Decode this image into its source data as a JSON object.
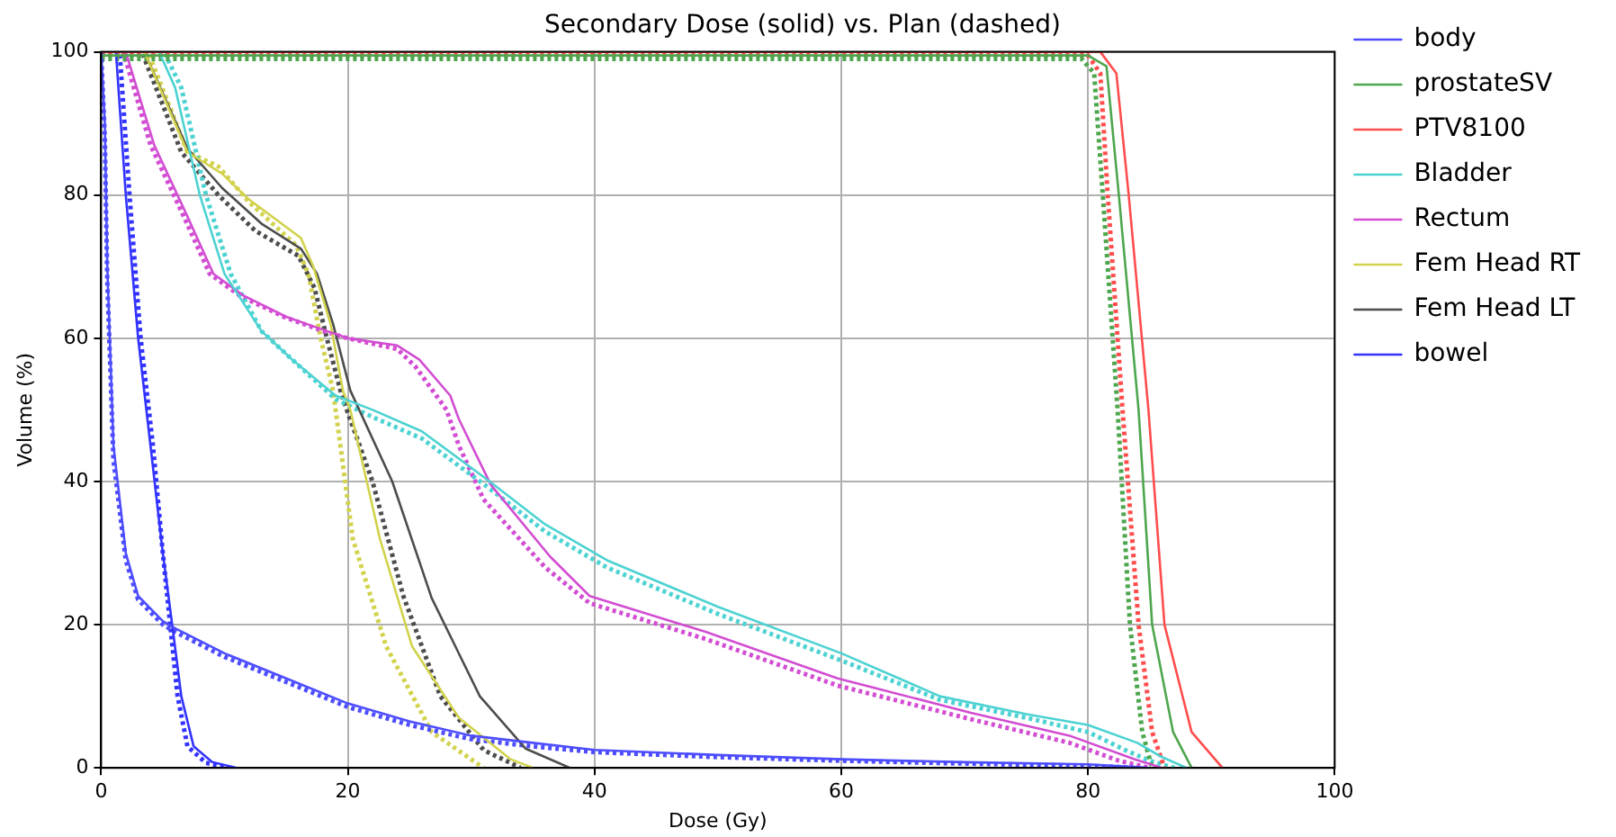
{
  "chart_data": {
    "type": "line",
    "title": "Secondary Dose (solid) vs. Plan (dashed)",
    "xlabel": "Dose (Gy)",
    "ylabel": "Volume (%)",
    "xlim": [
      0,
      100
    ],
    "xticks": [
      0,
      20,
      40,
      60,
      80,
      100
    ],
    "ylim": [
      0,
      100
    ],
    "yticks": [
      0,
      20,
      40,
      60,
      80,
      100
    ],
    "grid": true,
    "legend": "right",
    "series": [
      {
        "name": "body",
        "color": "#4d4dff",
        "line_style": "solid",
        "x": [
          0,
          0.3,
          0.5,
          1,
          2,
          3,
          5,
          6,
          10,
          15,
          20,
          25,
          30,
          35,
          40,
          50,
          60,
          70,
          80,
          85
        ],
        "values": [
          100,
          90,
          70,
          45,
          30,
          24,
          20.5,
          19.5,
          16,
          12.5,
          9,
          6.5,
          4.5,
          3.5,
          2.5,
          1.8,
          1.2,
          0.8,
          0.5,
          0
        ]
      },
      {
        "name": "prostateSV",
        "color": "#4da64d",
        "line_style": "solid",
        "x": [
          0,
          80,
          81.5,
          82.5,
          84.1,
          85.2,
          86.9,
          88.4
        ],
        "values": [
          99.5,
          99.5,
          98,
          80,
          50,
          20,
          5,
          0
        ]
      },
      {
        "name": "PTV8100",
        "color": "#ff4d4d",
        "line_style": "solid",
        "x": [
          0,
          81,
          82.3,
          83.3,
          84.9,
          86.2,
          88.4,
          90.9
        ],
        "values": [
          100,
          100,
          97,
          80,
          50,
          20,
          5,
          0
        ]
      },
      {
        "name": "Bladder",
        "color": "#4dd2d2",
        "line_style": "solid",
        "x": [
          0,
          4.7,
          6,
          8,
          10,
          13,
          15.5,
          19,
          22,
          26,
          31.5,
          36,
          41,
          50,
          60,
          68,
          75,
          80,
          84,
          86,
          88
        ],
        "values": [
          100,
          100,
          95,
          80,
          69,
          61,
          57,
          52,
          50,
          47,
          40,
          34,
          29,
          22.5,
          16,
          10,
          7.5,
          6,
          3.5,
          1.5,
          0
        ]
      },
      {
        "name": "Rectum",
        "color": "#d24dd2",
        "line_style": "solid",
        "x": [
          0,
          2,
          4.3,
          7,
          9.1,
          11.5,
          15,
          18.3,
          20,
          24,
          25.8,
          28.3,
          29,
          31.6,
          36.4,
          39.6,
          49,
          59.7,
          70.5,
          78.5,
          83.8,
          86
        ],
        "values": [
          100,
          100,
          87,
          77,
          69,
          66,
          63,
          61,
          60,
          59,
          57,
          52,
          48.7,
          39.5,
          29.5,
          24,
          19,
          12.5,
          7.7,
          4.5,
          1.2,
          0
        ]
      },
      {
        "name": "Fem Head RT",
        "color": "#d2d24d",
        "line_style": "solid",
        "x": [
          0,
          3.5,
          7,
          9.8,
          11.9,
          16.2,
          17.2,
          18.6,
          19.6,
          20.2,
          22.6,
          25.2,
          29,
          33.2,
          35
        ],
        "values": [
          100,
          100,
          86,
          83,
          79.5,
          74,
          70,
          62,
          52.7,
          50,
          32,
          17,
          7,
          1.2,
          0
        ]
      },
      {
        "name": "Fem Head LT",
        "color": "#4d4d4d",
        "line_style": "solid",
        "x": [
          0,
          3.5,
          7,
          9.8,
          13,
          16.2,
          17.5,
          18.8,
          20.2,
          23.6,
          26.8,
          30.7,
          34.4,
          38
        ],
        "values": [
          100,
          100,
          86.5,
          81,
          76,
          72.5,
          69,
          62,
          52.7,
          40,
          23.7,
          10,
          2.7,
          0
        ]
      },
      {
        "name": "bowel",
        "color": "#3333ff",
        "line_style": "solid",
        "x": [
          0,
          1.2,
          2,
          3,
          4,
          5,
          5.8,
          6.5,
          7.5,
          9,
          11
        ],
        "values": [
          100,
          100,
          80,
          60,
          45,
          30,
          19.5,
          10,
          3,
          0.8,
          0
        ]
      },
      {
        "color": "#4d4dff",
        "line_style": "dotted",
        "x": [
          0,
          0.3,
          0.5,
          1,
          2,
          3,
          5,
          6,
          10,
          15,
          20,
          25,
          30,
          35,
          40,
          50,
          60,
          70,
          80,
          84
        ],
        "values": [
          100,
          88,
          68,
          43,
          29,
          23.5,
          20,
          19,
          15.5,
          12,
          8.5,
          6,
          4,
          3,
          2.2,
          1.5,
          1,
          0.6,
          0.3,
          0
        ]
      },
      {
        "color": "#4da64d",
        "line_style": "dotted",
        "x": [
          0,
          79.5,
          80.5,
          81.2,
          82.4,
          83.4,
          84.4,
          85.2
        ],
        "values": [
          99,
          99,
          97,
          80,
          50,
          20,
          5,
          0
        ]
      },
      {
        "color": "#ff4d4d",
        "line_style": "dotted",
        "x": [
          0,
          80,
          81,
          81.6,
          82.8,
          84.1,
          85.2,
          86.2
        ],
        "values": [
          99.5,
          99.5,
          97,
          80,
          50,
          20,
          5,
          0
        ]
      },
      {
        "color": "#4dd2d2",
        "line_style": "dotted",
        "x": [
          0,
          5.1,
          6.5,
          8.5,
          10.5,
          13,
          15.5,
          19,
          22,
          26,
          31.5,
          36,
          41,
          50,
          60,
          68,
          75,
          80,
          83,
          85,
          87
        ],
        "values": [
          100,
          100,
          95,
          80,
          69,
          61,
          57,
          51.5,
          49,
          46,
          39,
          33,
          28,
          21.5,
          15,
          9.5,
          7,
          5,
          2.5,
          1,
          0
        ]
      },
      {
        "color": "#d24dd2",
        "line_style": "dotted",
        "x": [
          0,
          1.8,
          4,
          6.7,
          8.8,
          11.2,
          14.8,
          18,
          20,
          24,
          25.5,
          28,
          29,
          31,
          36,
          39.6,
          49,
          59.7,
          70.5,
          78.5,
          82.5,
          85
        ],
        "values": [
          100,
          100,
          87,
          77,
          69,
          66,
          63,
          61,
          60,
          58.5,
          56,
          50,
          45,
          37.5,
          28,
          23,
          18,
          11.5,
          6.8,
          3.5,
          1,
          0
        ]
      },
      {
        "color": "#d2d24d",
        "line_style": "dotted",
        "x": [
          0,
          3.8,
          7,
          9.5,
          12,
          15.8,
          16.8,
          17.8,
          18.8,
          20.4,
          23.1,
          26.8,
          31
        ],
        "values": [
          100,
          100,
          86,
          84,
          79,
          73,
          69,
          60,
          52.7,
          32,
          17,
          5,
          0
        ]
      },
      {
        "color": "#4d4d4d",
        "line_style": "dotted",
        "x": [
          0,
          3.3,
          6.5,
          9.5,
          12.5,
          16,
          17.3,
          18.3,
          19.5,
          22,
          24.5,
          27.5,
          31,
          34
        ],
        "values": [
          100,
          100,
          86,
          80,
          75,
          71.5,
          67,
          60,
          52,
          40,
          24,
          10,
          2.5,
          0
        ]
      },
      {
        "color": "#3333ff",
        "line_style": "dotted",
        "x": [
          0,
          1.5,
          2.3,
          3.2,
          4.2,
          5,
          5.6,
          6.2,
          7,
          8.5,
          10.5
        ],
        "values": [
          100,
          100,
          80,
          60,
          45,
          30,
          20,
          10,
          3,
          0.7,
          0
        ]
      }
    ]
  }
}
